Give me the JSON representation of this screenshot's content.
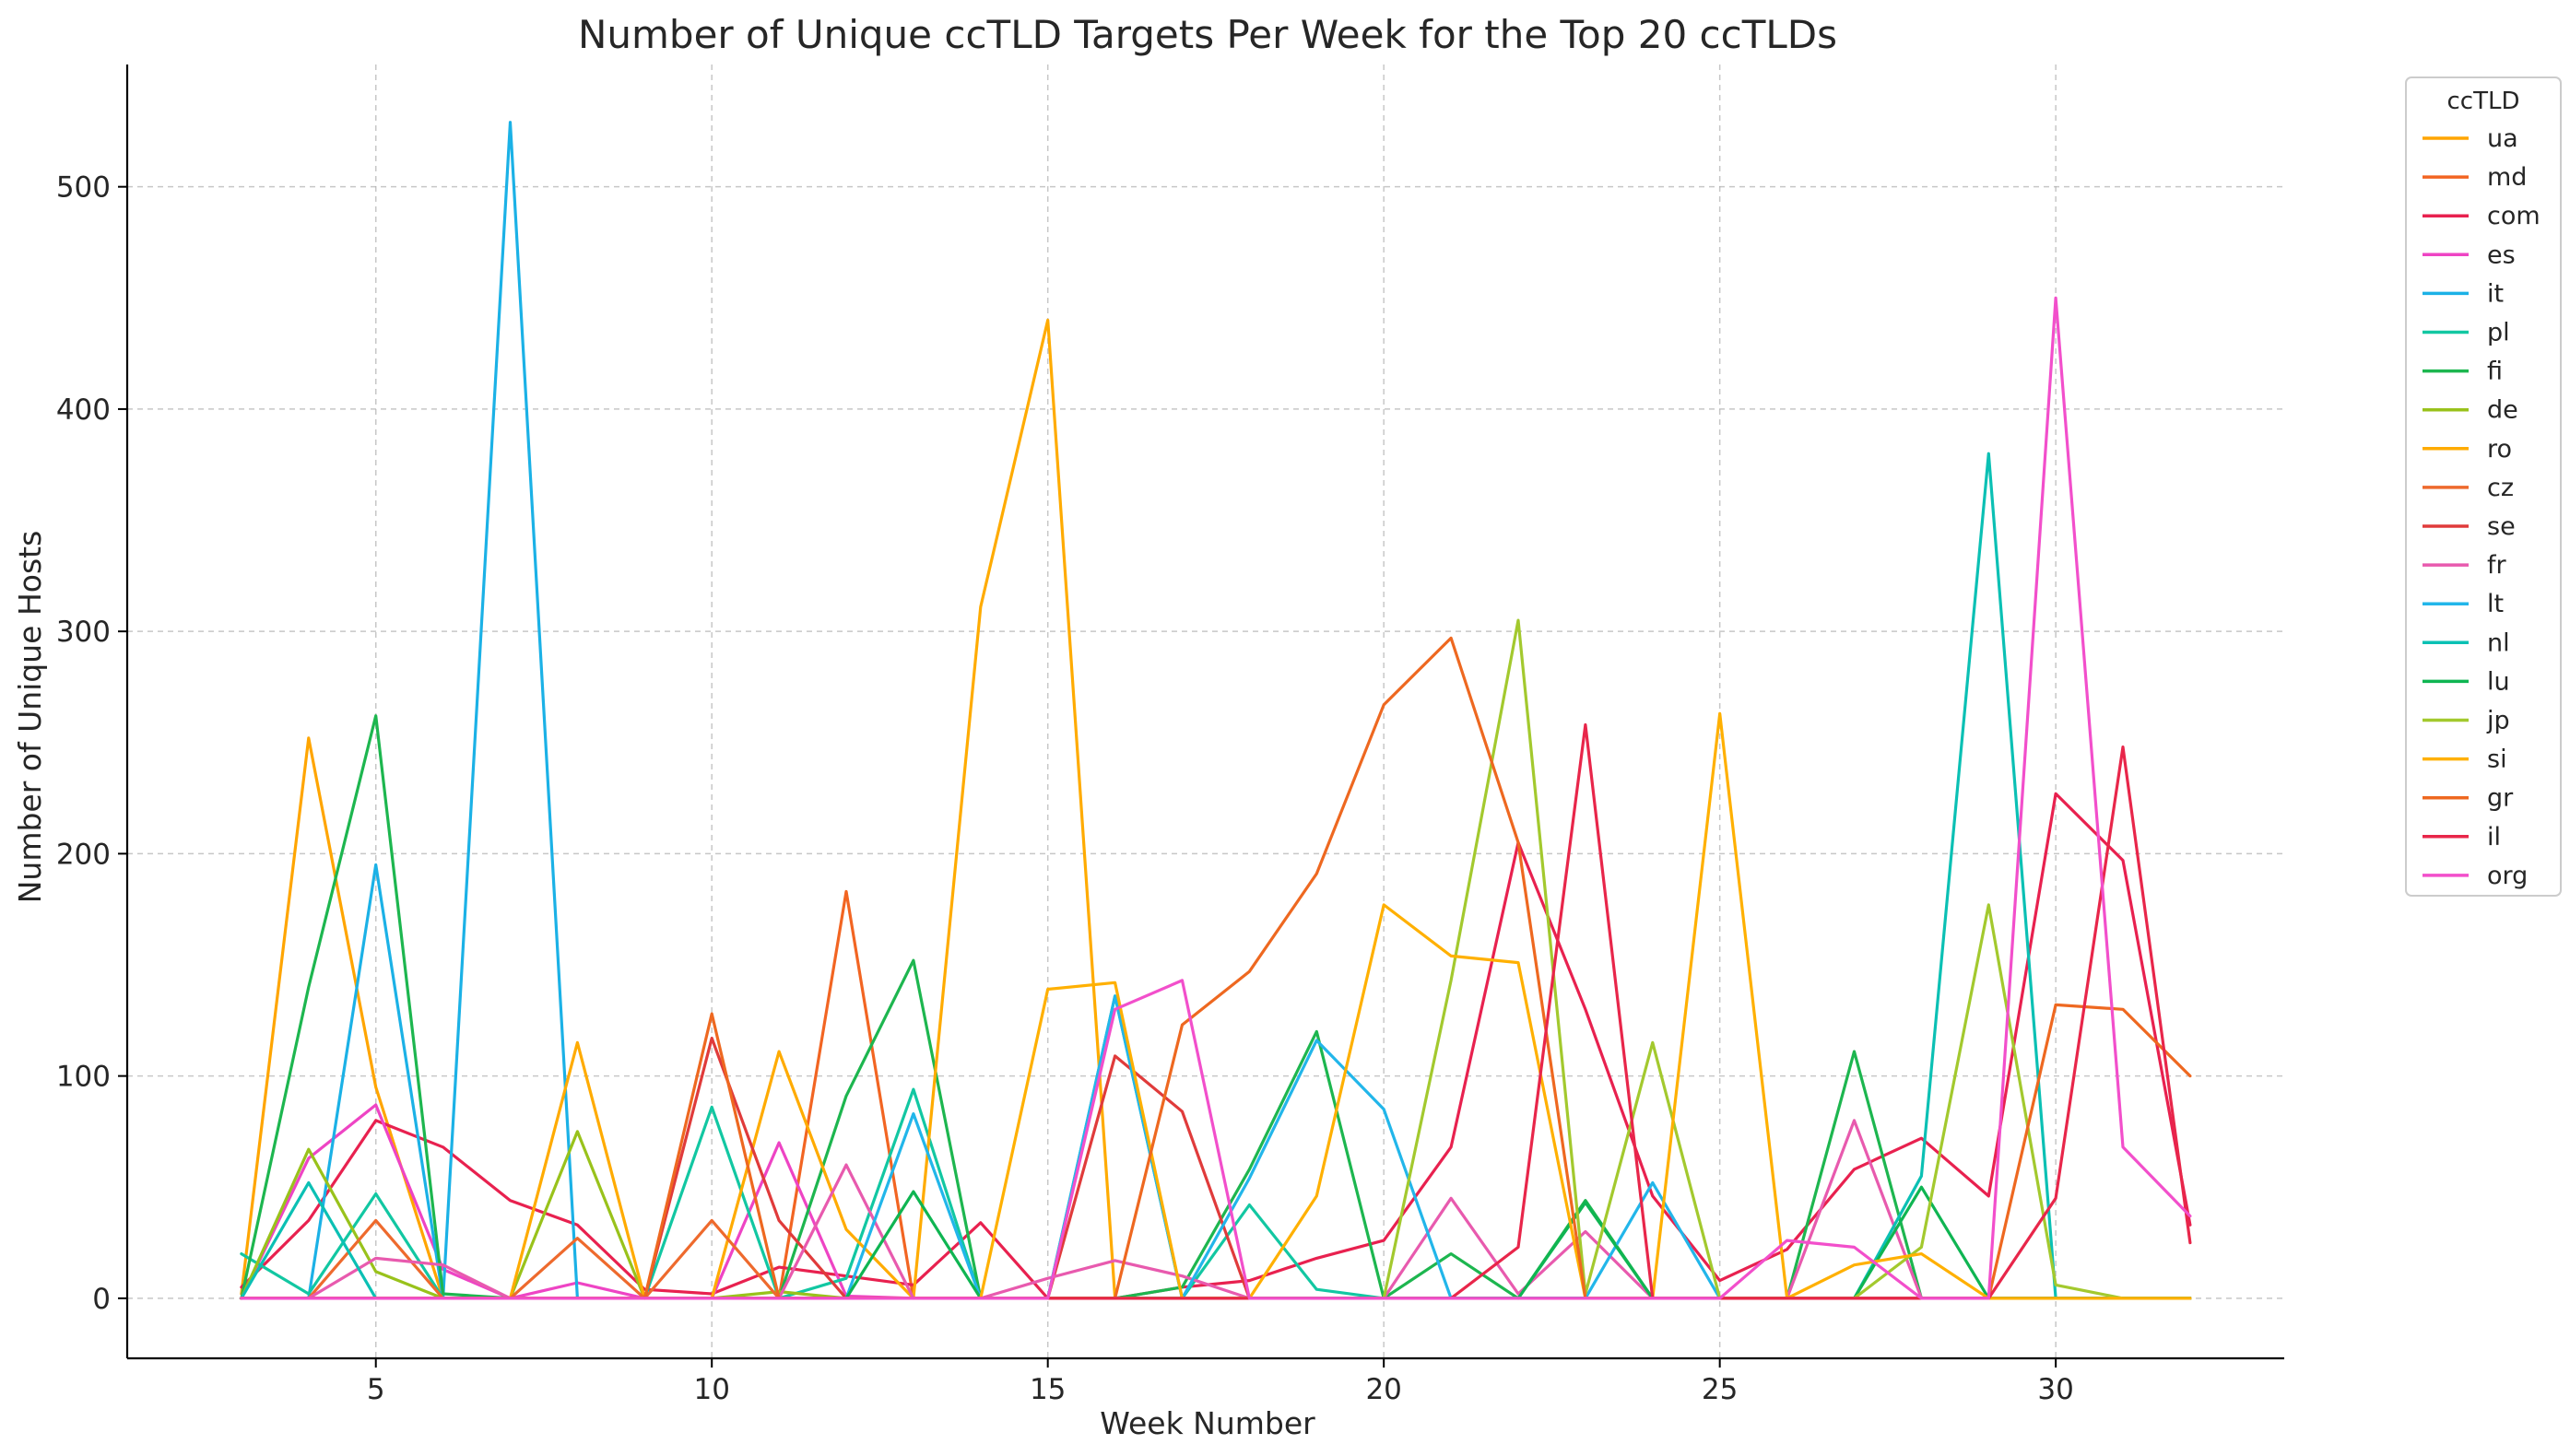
{
  "chart_data": {
    "type": "line",
    "title": "Number of Unique ccTLD Targets Per Week for the Top 20 ccTLDs",
    "xlabel": "Week Number",
    "ylabel": "Number of Unique Hosts",
    "xlim": [
      1.3,
      33.4
    ],
    "ylim": [
      -27,
      555
    ],
    "xticks": [
      5,
      10,
      15,
      20,
      25,
      30
    ],
    "yticks": [
      0,
      100,
      200,
      300,
      400,
      500
    ],
    "grid": true,
    "legend_title": "ccTLD",
    "legend_position": "outside-top-right",
    "x": [
      3,
      4,
      5,
      6,
      7,
      8,
      9,
      10,
      11,
      12,
      13,
      14,
      15,
      16,
      17,
      18,
      19,
      20,
      21,
      22,
      23,
      24,
      25,
      26,
      27,
      28,
      29,
      30,
      31,
      32
    ],
    "series": [
      {
        "name": "ua",
        "color": "#FFA500",
        "values": [
          2,
          252,
          95,
          0,
          0,
          0,
          0,
          0,
          0,
          0,
          0,
          0,
          0,
          0,
          0,
          0,
          0,
          0,
          0,
          0,
          0,
          0,
          0,
          0,
          0,
          0,
          0,
          0,
          0,
          0
        ]
      },
      {
        "name": "md",
        "color": "#F26522",
        "values": [
          0,
          0,
          0,
          0,
          0,
          0,
          0,
          0,
          0,
          183,
          0,
          0,
          0,
          0,
          0,
          0,
          0,
          0,
          0,
          0,
          0,
          0,
          0,
          0,
          0,
          0,
          0,
          0,
          0,
          0
        ]
      },
      {
        "name": "com",
        "color": "#E8214F",
        "values": [
          5,
          35,
          80,
          68,
          44,
          33,
          4,
          2,
          14,
          10,
          6,
          34,
          0,
          0,
          5,
          8,
          18,
          26,
          68,
          205,
          130,
          46,
          8,
          22,
          58,
          72,
          46,
          227,
          197,
          33
        ]
      },
      {
        "name": "es",
        "color": "#EE44C4",
        "values": [
          0,
          63,
          87,
          13,
          0,
          7,
          0,
          0,
          70,
          1,
          0,
          0,
          0,
          0,
          0,
          0,
          0,
          0,
          0,
          0,
          0,
          0,
          0,
          0,
          0,
          0,
          0,
          0,
          0,
          0
        ]
      },
      {
        "name": "it",
        "color": "#1BB1E6",
        "values": [
          0,
          0,
          195,
          0,
          529,
          0,
          0,
          0,
          0,
          0,
          0,
          0,
          0,
          0,
          0,
          0,
          0,
          0,
          0,
          0,
          0,
          0,
          0,
          0,
          0,
          0,
          0,
          0,
          0,
          0
        ]
      },
      {
        "name": "pl",
        "color": "#12C7A2",
        "values": [
          20,
          2,
          47,
          0,
          0,
          0,
          0,
          86,
          0,
          9,
          94,
          0,
          0,
          136,
          0,
          42,
          4,
          0,
          0,
          0,
          0,
          0,
          0,
          0,
          0,
          0,
          0,
          0,
          0,
          0
        ]
      },
      {
        "name": "fi",
        "color": "#1DB64F",
        "values": [
          0,
          140,
          262,
          2,
          0,
          0,
          0,
          0,
          0,
          91,
          152,
          0,
          0,
          0,
          5,
          58,
          120,
          0,
          20,
          0,
          44,
          0,
          0,
          0,
          111,
          0,
          0,
          0,
          0,
          0
        ]
      },
      {
        "name": "de",
        "color": "#99C21B",
        "values": [
          0,
          67,
          12,
          0,
          0,
          75,
          0,
          0,
          3,
          0,
          0,
          0,
          0,
          0,
          0,
          0,
          0,
          0,
          0,
          0,
          0,
          0,
          0,
          0,
          0,
          0,
          0,
          0,
          0,
          0
        ]
      },
      {
        "name": "ro",
        "color": "#FFAB00",
        "values": [
          0,
          0,
          0,
          0,
          0,
          115,
          0,
          0,
          111,
          31,
          0,
          311,
          440,
          0,
          0,
          0,
          0,
          0,
          0,
          0,
          0,
          0,
          0,
          0,
          0,
          0,
          0,
          0,
          0,
          0
        ]
      },
      {
        "name": "cz",
        "color": "#EE6A2D",
        "values": [
          0,
          0,
          35,
          0,
          0,
          27,
          0,
          35,
          0,
          0,
          0,
          0,
          0,
          0,
          0,
          0,
          0,
          0,
          0,
          0,
          0,
          0,
          0,
          0,
          0,
          0,
          0,
          0,
          0,
          0
        ]
      },
      {
        "name": "se",
        "color": "#E03B3B",
        "values": [
          0,
          0,
          0,
          0,
          0,
          0,
          0,
          117,
          35,
          0,
          0,
          0,
          0,
          109,
          84,
          0,
          0,
          0,
          0,
          0,
          0,
          0,
          0,
          0,
          0,
          0,
          0,
          0,
          0,
          0
        ]
      },
      {
        "name": "fr",
        "color": "#E85AAE",
        "values": [
          0,
          0,
          18,
          15,
          0,
          0,
          0,
          0,
          0,
          60,
          0,
          0,
          9,
          17,
          10,
          0,
          0,
          0,
          45,
          2,
          30,
          0,
          0,
          0,
          80,
          0,
          0,
          0,
          0,
          0
        ]
      },
      {
        "name": "lt",
        "color": "#22B6EA",
        "values": [
          0,
          0,
          0,
          0,
          0,
          0,
          0,
          0,
          0,
          0,
          83,
          0,
          0,
          136,
          0,
          54,
          116,
          85,
          0,
          0,
          0,
          52,
          0,
          0,
          0,
          0,
          0,
          0,
          0,
          0
        ]
      },
      {
        "name": "nl",
        "color": "#0BC0B4",
        "values": [
          0,
          52,
          0,
          0,
          0,
          0,
          0,
          0,
          0,
          0,
          0,
          0,
          0,
          0,
          0,
          0,
          0,
          0,
          0,
          0,
          0,
          0,
          0,
          0,
          0,
          55,
          380,
          0,
          0,
          0
        ]
      },
      {
        "name": "lu",
        "color": "#0FB552",
        "values": [
          0,
          0,
          0,
          0,
          0,
          0,
          0,
          0,
          0,
          0,
          48,
          0,
          0,
          0,
          0,
          0,
          0,
          0,
          0,
          0,
          43,
          0,
          0,
          0,
          0,
          50,
          0,
          0,
          0,
          0
        ]
      },
      {
        "name": "jp",
        "color": "#A3C92E",
        "values": [
          0,
          0,
          0,
          0,
          0,
          0,
          0,
          0,
          0,
          0,
          0,
          0,
          0,
          0,
          0,
          0,
          0,
          0,
          143,
          305,
          2,
          115,
          0,
          0,
          0,
          23,
          177,
          6,
          0,
          0
        ]
      },
      {
        "name": "si",
        "color": "#FFB000",
        "values": [
          0,
          0,
          0,
          0,
          0,
          0,
          0,
          0,
          0,
          0,
          0,
          0,
          139,
          142,
          0,
          0,
          46,
          177,
          154,
          151,
          0,
          0,
          263,
          0,
          15,
          20,
          0,
          0,
          0,
          0
        ]
      },
      {
        "name": "gr",
        "color": "#EE6820",
        "values": [
          0,
          0,
          0,
          0,
          0,
          0,
          0,
          128,
          0,
          0,
          0,
          0,
          0,
          0,
          123,
          147,
          191,
          267,
          297,
          205,
          0,
          0,
          0,
          0,
          0,
          0,
          0,
          132,
          130,
          100
        ]
      },
      {
        "name": "il",
        "color": "#E8264A",
        "values": [
          0,
          0,
          0,
          0,
          0,
          0,
          0,
          0,
          0,
          0,
          0,
          0,
          0,
          0,
          0,
          0,
          0,
          0,
          0,
          23,
          258,
          0,
          0,
          0,
          0,
          0,
          0,
          45,
          248,
          25
        ]
      },
      {
        "name": "org",
        "color": "#F24FCB",
        "values": [
          0,
          0,
          0,
          0,
          0,
          0,
          0,
          0,
          0,
          0,
          0,
          0,
          0,
          130,
          143,
          0,
          0,
          0,
          0,
          0,
          0,
          0,
          0,
          26,
          23,
          0,
          0,
          450,
          68,
          37
        ]
      }
    ]
  }
}
